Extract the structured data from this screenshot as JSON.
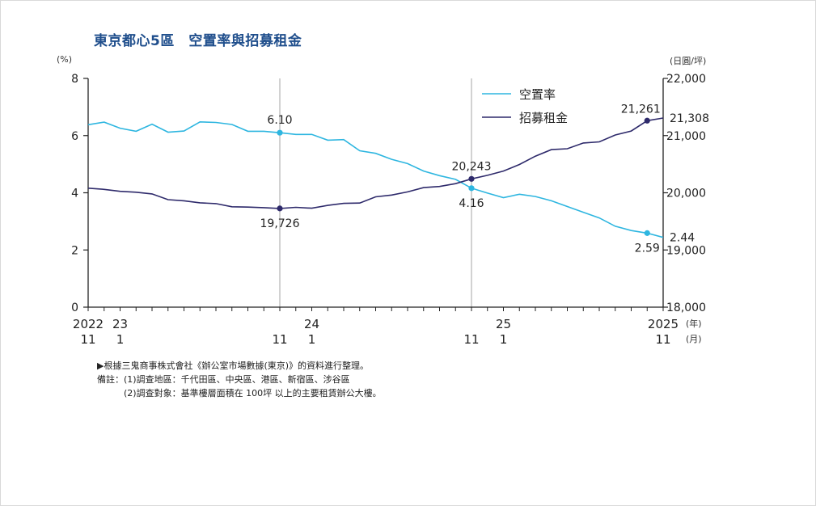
{
  "title": "東京都心5區　空置率與招募租金",
  "left_unit": "(%)",
  "right_unit": "(日圓/坪)",
  "year_label": "(年)",
  "month_label": "(月)",
  "notes": [
    "▶根據三鬼商事株式會社《辦公室市場數據(東京)》的資料進行整理。",
    "備註：(1)調查地區：千代田區、中央區、港區、新宿區、涉谷區",
    "　　　(2)調查對象：基準樓層面積在 100坪 以上的主要租賃辦公大樓。"
  ],
  "colors": {
    "vacancy": "#2eb6e0",
    "rent": "#2e2a6b",
    "axis": "#222222",
    "vline": "#b5b5b5"
  },
  "chart_data": {
    "type": "line",
    "x_axis": {
      "start": "2022-11",
      "end": "2025-11",
      "year_ticks": [
        {
          "year": "2022",
          "month": "11",
          "index": 0
        },
        {
          "year": "23",
          "month": "1",
          "index": 2
        },
        {
          "year": "",
          "month": "11",
          "index": 12
        },
        {
          "year": "24",
          "month": "1",
          "index": 14
        },
        {
          "year": "",
          "month": "11",
          "index": 24
        },
        {
          "year": "25",
          "month": "1",
          "index": 26
        },
        {
          "year": "2025",
          "month": "11",
          "index": 36
        }
      ]
    },
    "left_axis": {
      "ylim": [
        0,
        8
      ],
      "ticks": [
        "0",
        "2",
        "4",
        "6",
        "8"
      ]
    },
    "right_axis": {
      "ylim": [
        18000,
        22000
      ],
      "ticks": [
        "18,000",
        "19,000",
        "20,000",
        "21,000",
        "22,000"
      ]
    },
    "vertical_lines_at_index": [
      12,
      24
    ],
    "series": [
      {
        "name": "空置率",
        "axis": "left",
        "values": [
          6.38,
          6.47,
          6.26,
          6.15,
          6.4,
          6.12,
          6.16,
          6.48,
          6.46,
          6.39,
          6.15,
          6.15,
          6.1,
          6.04,
          6.04,
          5.84,
          5.86,
          5.47,
          5.38,
          5.17,
          5.02,
          4.76,
          4.6,
          4.47,
          4.16,
          3.99,
          3.83,
          3.95,
          3.87,
          3.72,
          3.52,
          3.32,
          3.12,
          2.83,
          2.68,
          2.59,
          2.44
        ]
      },
      {
        "name": "招募租金",
        "axis": "right",
        "values": [
          20080,
          20060,
          20025,
          20010,
          19980,
          19880,
          19860,
          19825,
          19810,
          19755,
          19750,
          19740,
          19726,
          19745,
          19730,
          19780,
          19815,
          19820,
          19930,
          19960,
          20015,
          20090,
          20110,
          20160,
          20243,
          20305,
          20380,
          20495,
          20640,
          20755,
          20770,
          20870,
          20890,
          21010,
          21080,
          21261,
          21308
        ]
      }
    ],
    "point_labels": [
      {
        "series": 0,
        "index": 12,
        "text": "6.10",
        "pos": "above"
      },
      {
        "series": 0,
        "index": 24,
        "text": "4.16",
        "pos": "below"
      },
      {
        "series": 0,
        "index": 35,
        "text": "2.59",
        "pos": "below"
      },
      {
        "series": 0,
        "index": 36,
        "text": "2.44",
        "pos": "right"
      },
      {
        "series": 1,
        "index": 12,
        "text": "19,726",
        "pos": "below"
      },
      {
        "series": 1,
        "index": 24,
        "text": "20,243",
        "pos": "above"
      },
      {
        "series": 1,
        "index": 35,
        "text": "21,261",
        "pos": "above-left"
      },
      {
        "series": 1,
        "index": 36,
        "text": "21,308",
        "pos": "right"
      }
    ],
    "legend": [
      "空置率",
      "招募租金"
    ],
    "legend_position": "top-right"
  }
}
